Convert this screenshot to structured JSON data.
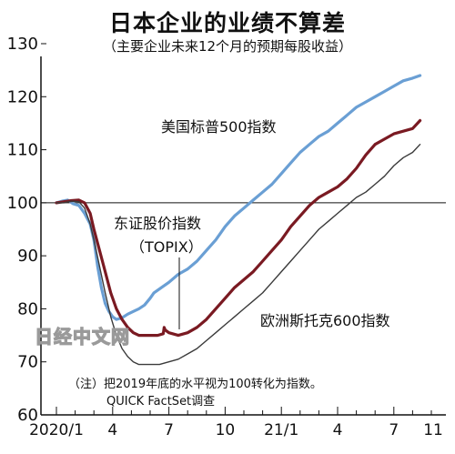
{
  "chart_data": {
    "type": "line",
    "title": "日本企业的业绩不算差",
    "subtitle": "（主要企业未来12个月的预期每股收益）",
    "ylim": [
      60,
      130
    ],
    "yticks": [
      60,
      70,
      80,
      90,
      100,
      110,
      120,
      130
    ],
    "x_tick_labels": [
      "2020/1",
      "4",
      "7",
      "10",
      "21/1",
      "4",
      "7",
      "10",
      "11"
    ],
    "reference_line": 100,
    "series": [
      {
        "name": "美国标普500指数",
        "color": "#6a9fd4",
        "values": [
          [
            0,
            100
          ],
          [
            0.3,
            100.3
          ],
          [
            0.6,
            100.5
          ],
          [
            0.9,
            99.8
          ],
          [
            1.2,
            99.5
          ],
          [
            1.5,
            98
          ],
          [
            1.8,
            96
          ],
          [
            2.0,
            93
          ],
          [
            2.2,
            88
          ],
          [
            2.4,
            84
          ],
          [
            2.6,
            81
          ],
          [
            2.8,
            79.5
          ],
          [
            3.0,
            78.5
          ],
          [
            3.2,
            78
          ],
          [
            3.5,
            78.3
          ],
          [
            3.8,
            79
          ],
          [
            4.1,
            79.5
          ],
          [
            4.4,
            80
          ],
          [
            4.7,
            80.7
          ],
          [
            5.0,
            82
          ],
          [
            5.2,
            83
          ],
          [
            5.6,
            84
          ],
          [
            6.0,
            85
          ],
          [
            6.5,
            86.5
          ],
          [
            7.0,
            87.5
          ],
          [
            7.5,
            89
          ],
          [
            8.0,
            91
          ],
          [
            8.5,
            93
          ],
          [
            9.0,
            95.5
          ],
          [
            9.5,
            97.5
          ],
          [
            10.0,
            99
          ],
          [
            10.5,
            100.5
          ],
          [
            11.0,
            102
          ],
          [
            11.5,
            103.5
          ],
          [
            12.0,
            105.5
          ],
          [
            12.5,
            107.5
          ],
          [
            13.0,
            109.5
          ],
          [
            13.5,
            111
          ],
          [
            14.0,
            112.5
          ],
          [
            14.5,
            113.5
          ],
          [
            15.0,
            115
          ],
          [
            15.5,
            116.5
          ],
          [
            16.0,
            118
          ],
          [
            16.5,
            119
          ],
          [
            17.0,
            120
          ],
          [
            17.5,
            121
          ],
          [
            18.0,
            122
          ],
          [
            18.5,
            123
          ],
          [
            19.0,
            123.5
          ],
          [
            19.4,
            124
          ]
        ]
      },
      {
        "name": "东证股价指数 （TOPIX）",
        "color": "#7a1a22",
        "values": [
          [
            0,
            100
          ],
          [
            0.4,
            100.2
          ],
          [
            0.8,
            100.4
          ],
          [
            1.2,
            100.5
          ],
          [
            1.5,
            100
          ],
          [
            1.8,
            98
          ],
          [
            2.0,
            95
          ],
          [
            2.3,
            91
          ],
          [
            2.6,
            87
          ],
          [
            2.9,
            83
          ],
          [
            3.2,
            80
          ],
          [
            3.5,
            78
          ],
          [
            3.8,
            76.5
          ],
          [
            4.1,
            75.5
          ],
          [
            4.4,
            75
          ],
          [
            4.7,
            75
          ],
          [
            5.0,
            75
          ],
          [
            5.4,
            75
          ],
          [
            5.7,
            75.3
          ],
          [
            5.75,
            76.5
          ],
          [
            5.8,
            76
          ],
          [
            6.0,
            75.5
          ],
          [
            6.5,
            75
          ],
          [
            7.0,
            75.5
          ],
          [
            7.5,
            76.5
          ],
          [
            8.0,
            78
          ],
          [
            8.5,
            80
          ],
          [
            9.0,
            82
          ],
          [
            9.5,
            84
          ],
          [
            10.0,
            85.5
          ],
          [
            10.5,
            87
          ],
          [
            11.0,
            89
          ],
          [
            11.5,
            91
          ],
          [
            12.0,
            93
          ],
          [
            12.5,
            95.5
          ],
          [
            13.0,
            97.5
          ],
          [
            13.5,
            99.5
          ],
          [
            14.0,
            101
          ],
          [
            14.5,
            102
          ],
          [
            15.0,
            103
          ],
          [
            15.5,
            104.5
          ],
          [
            16.0,
            106.5
          ],
          [
            16.5,
            109
          ],
          [
            17.0,
            111
          ],
          [
            17.5,
            112
          ],
          [
            18.0,
            113
          ],
          [
            18.5,
            113.5
          ],
          [
            19.0,
            114
          ],
          [
            19.4,
            115.5
          ]
        ]
      },
      {
        "name": "欧洲斯托克600指数",
        "color": "#3a3a3a",
        "values": [
          [
            0,
            100
          ],
          [
            0.4,
            100
          ],
          [
            0.8,
            100.3
          ],
          [
            1.2,
            100.2
          ],
          [
            1.5,
            99
          ],
          [
            1.8,
            96
          ],
          [
            2.0,
            93
          ],
          [
            2.3,
            88
          ],
          [
            2.6,
            83
          ],
          [
            2.9,
            78.5
          ],
          [
            3.2,
            75
          ],
          [
            3.5,
            72.5
          ],
          [
            3.8,
            71
          ],
          [
            4.1,
            70
          ],
          [
            4.4,
            69.5
          ],
          [
            4.7,
            69.5
          ],
          [
            5.0,
            69.5
          ],
          [
            5.5,
            69.5
          ],
          [
            6.0,
            70
          ],
          [
            6.5,
            70.5
          ],
          [
            7.0,
            71.5
          ],
          [
            7.5,
            72.5
          ],
          [
            8.0,
            74
          ],
          [
            8.5,
            75.5
          ],
          [
            9.0,
            77
          ],
          [
            9.5,
            78.5
          ],
          [
            10.0,
            80
          ],
          [
            10.5,
            81.5
          ],
          [
            11.0,
            83
          ],
          [
            11.5,
            85
          ],
          [
            12.0,
            87
          ],
          [
            12.5,
            89
          ],
          [
            13.0,
            91
          ],
          [
            13.5,
            93
          ],
          [
            14.0,
            95
          ],
          [
            14.5,
            96.5
          ],
          [
            15.0,
            98
          ],
          [
            15.5,
            99.5
          ],
          [
            16.0,
            101
          ],
          [
            16.5,
            102
          ],
          [
            17.0,
            103.5
          ],
          [
            17.5,
            105
          ],
          [
            18.0,
            107
          ],
          [
            18.5,
            108.5
          ],
          [
            19.0,
            109.5
          ],
          [
            19.4,
            111
          ]
        ]
      }
    ]
  },
  "annotations": {
    "sp500_label": "美国标普500指数",
    "topix_label1": "东证股价指数",
    "topix_label2": "（TOPIX）",
    "stoxx_label": "欧洲斯托克600指数",
    "note": "（注）把2019年底的水平视为100转化为指数。",
    "source": "QUICK FactSet调查",
    "watermark": "日经中文网"
  }
}
